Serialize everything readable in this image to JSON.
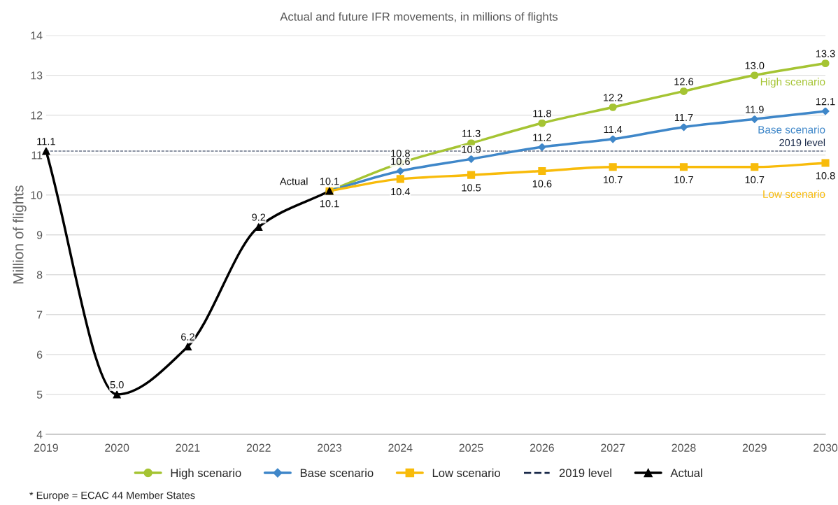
{
  "chart_data": {
    "type": "line",
    "subtitle": "Actual and future IFR movements, in millions of flights",
    "ylabel": "Million of flights",
    "xlim": [
      2019,
      2030
    ],
    "xticks": [
      2019,
      2020,
      2021,
      2022,
      2023,
      2024,
      2025,
      2026,
      2027,
      2028,
      2029,
      2030
    ],
    "ylim": [
      4,
      14
    ],
    "yticks": [
      4,
      5,
      6,
      7,
      8,
      9,
      10,
      11,
      12,
      13,
      14
    ],
    "grid": "y",
    "legend": "bottom",
    "line_style": "solid",
    "series": [
      {
        "name": "High scenario",
        "color": "#a5c433",
        "marker": "circle",
        "x": [
          2023,
          2024,
          2025,
          2026,
          2027,
          2028,
          2029,
          2030
        ],
        "values": [
          10.1,
          10.8,
          11.3,
          11.8,
          12.2,
          12.6,
          13.0,
          13.3
        ],
        "value_labels": [
          null,
          "10.8",
          "11.3",
          "11.8",
          "12.2",
          "12.6",
          "13.0",
          "13.3"
        ]
      },
      {
        "name": "Base scenario",
        "color": "#3f87c9",
        "marker": "diamond",
        "x": [
          2023,
          2024,
          2025,
          2026,
          2027,
          2028,
          2029,
          2030
        ],
        "values": [
          10.1,
          10.6,
          10.9,
          11.2,
          11.4,
          11.7,
          11.9,
          12.1
        ],
        "value_labels": [
          null,
          "10.6",
          "10.9",
          "11.2",
          "11.4",
          "11.7",
          "11.9",
          "12.1"
        ]
      },
      {
        "name": "Low scenario",
        "color": "#f8bb0a",
        "marker": "square",
        "x": [
          2023,
          2024,
          2025,
          2026,
          2027,
          2028,
          2029,
          2030
        ],
        "values": [
          10.1,
          10.4,
          10.5,
          10.6,
          10.7,
          10.7,
          10.7,
          10.8
        ],
        "value_labels": [
          "10.1",
          "10.4",
          "10.5",
          "10.6",
          "10.7",
          "10.7",
          "10.7",
          "10.8"
        ]
      },
      {
        "name": "Actual",
        "color": "#000000",
        "marker": "triangle",
        "x": [
          2019,
          2020,
          2021,
          2022,
          2023
        ],
        "values": [
          11.1,
          5.0,
          6.2,
          9.2,
          10.1
        ],
        "value_labels": [
          "11.1",
          "5.0",
          "6.2",
          "9.2",
          "10.1"
        ]
      }
    ],
    "ref_lines": [
      {
        "axis": "y",
        "value": 11.1,
        "label": "2019 level",
        "color": "#1a2a4a",
        "line_style": "dashed"
      }
    ],
    "annotations": [
      "* Europe = ECAC 44 Member States"
    ]
  }
}
